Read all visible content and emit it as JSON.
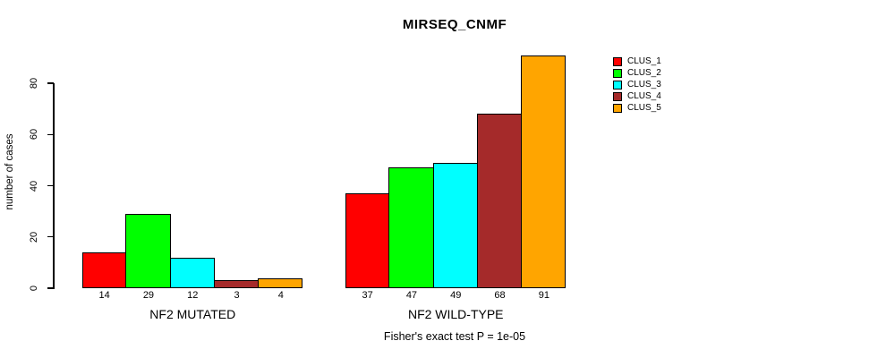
{
  "chart_data": {
    "type": "bar",
    "title": "MIRSEQ_CNMF",
    "ylabel": "number of cases",
    "xlabel": "",
    "yticks": [
      0,
      20,
      40,
      60,
      80
    ],
    "ylim": [
      0,
      91
    ],
    "grid": false,
    "legend_position": "right",
    "bar_value_labels_shown": true,
    "categories": [
      "NF2 MUTATED",
      "NF2 WILD-TYPE"
    ],
    "series": [
      {
        "name": "CLUS_1",
        "color": "#FF0000",
        "values": [
          14,
          37
        ]
      },
      {
        "name": "CLUS_2",
        "color": "#00FF00",
        "values": [
          29,
          47
        ]
      },
      {
        "name": "CLUS_3",
        "color": "#00FFFF",
        "values": [
          12,
          49
        ]
      },
      {
        "name": "CLUS_4",
        "color": "#A52A2A",
        "values": [
          3,
          68
        ]
      },
      {
        "name": "CLUS_5",
        "color": "#FFA500",
        "values": [
          4,
          91
        ]
      }
    ],
    "annotation": "Fisher's exact test P = 1e-05",
    "axis_color": "#000000",
    "background_color": "#FFFFFF"
  }
}
